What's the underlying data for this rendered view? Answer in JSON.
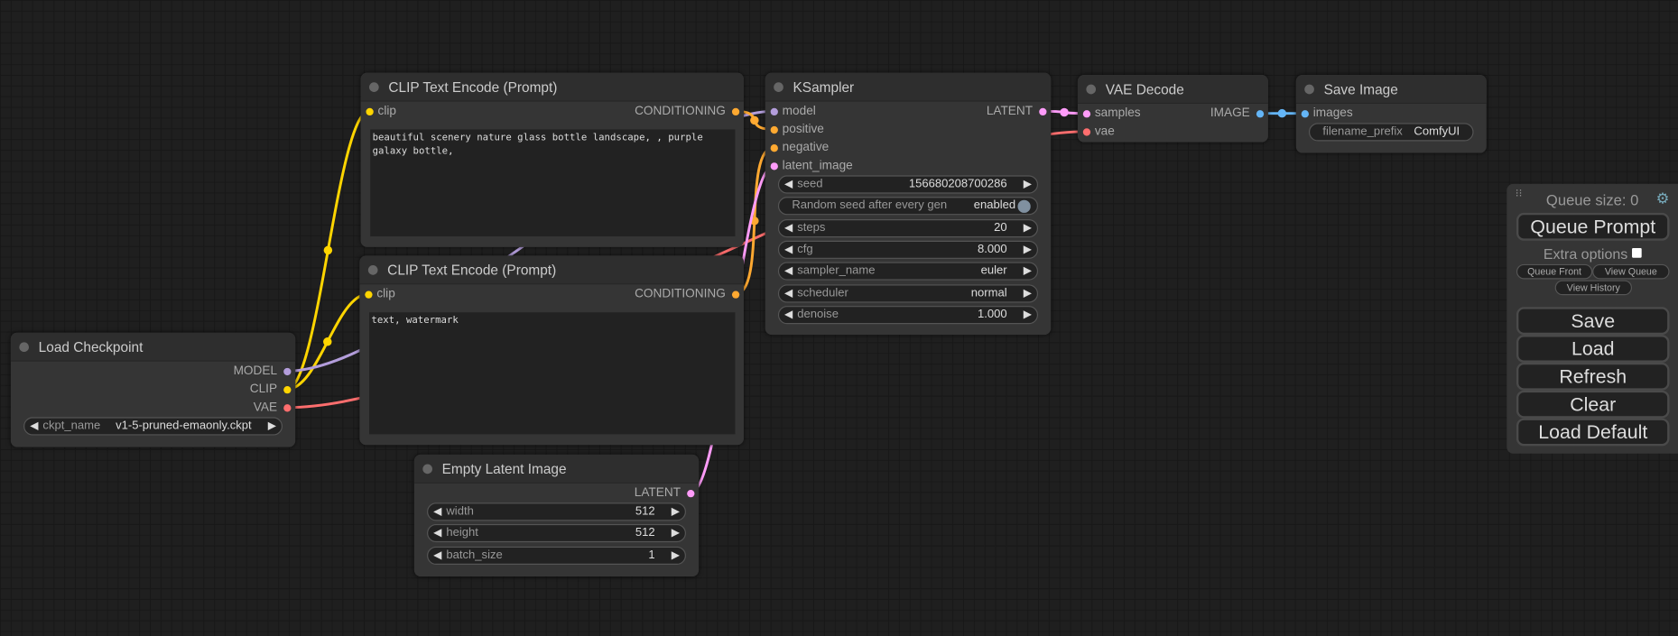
{
  "colors": {
    "CLIP": "#ffd500",
    "MODEL": "#b39ddb",
    "VAE": "#ff6e6e",
    "CONDITIONING": "#ffa931",
    "LATENT": "#ff9cf9",
    "IMAGE": "#64b5f6"
  },
  "nodes": [
    {
      "id": "clip1",
      "title": "CLIP Text Encode (Prompt)",
      "inputs": [
        {
          "name": "clip",
          "type": "CLIP"
        }
      ],
      "outputs": [
        {
          "name": "CONDITIONING",
          "type": "CONDITIONING"
        }
      ],
      "widgets": [],
      "text": "beautiful scenery nature glass bottle landscape, , purple galaxy bottle,"
    },
    {
      "id": "clip2",
      "title": "CLIP Text Encode (Prompt)",
      "inputs": [
        {
          "name": "clip",
          "type": "CLIP"
        }
      ],
      "outputs": [
        {
          "name": "CONDITIONING",
          "type": "CONDITIONING"
        }
      ],
      "widgets": [],
      "text": "text, watermark"
    },
    {
      "id": "ckpt",
      "title": "Load Checkpoint",
      "inputs": [],
      "outputs": [
        {
          "name": "MODEL",
          "type": "MODEL"
        },
        {
          "name": "CLIP",
          "type": "CLIP"
        },
        {
          "name": "VAE",
          "type": "VAE"
        }
      ],
      "widgets": [
        {
          "name": "ckpt_name",
          "value": "v1-5-pruned-emaonly.ckpt",
          "kind": "combo"
        }
      ]
    },
    {
      "id": "latent",
      "title": "Empty Latent Image",
      "inputs": [],
      "outputs": [
        {
          "name": "LATENT",
          "type": "LATENT"
        }
      ],
      "widgets": [
        {
          "name": "width",
          "value": "512",
          "kind": "number"
        },
        {
          "name": "height",
          "value": "512",
          "kind": "number"
        },
        {
          "name": "batch_size",
          "value": "1",
          "kind": "number"
        }
      ]
    },
    {
      "id": "ksampler",
      "title": "KSampler",
      "inputs": [
        {
          "name": "model",
          "type": "MODEL"
        },
        {
          "name": "positive",
          "type": "CONDITIONING"
        },
        {
          "name": "negative",
          "type": "CONDITIONING"
        },
        {
          "name": "latent_image",
          "type": "LATENT"
        }
      ],
      "outputs": [
        {
          "name": "LATENT",
          "type": "LATENT"
        }
      ],
      "widgets": [
        {
          "name": "seed",
          "value": "156680208700286",
          "kind": "number"
        },
        {
          "name": "Random seed after every gen",
          "value": "enabled",
          "kind": "toggle"
        },
        {
          "name": "steps",
          "value": "20",
          "kind": "number"
        },
        {
          "name": "cfg",
          "value": "8.000",
          "kind": "number"
        },
        {
          "name": "sampler_name",
          "value": "euler",
          "kind": "combo"
        },
        {
          "name": "scheduler",
          "value": "normal",
          "kind": "combo"
        },
        {
          "name": "denoise",
          "value": "1.000",
          "kind": "number"
        }
      ]
    },
    {
      "id": "vaedecode",
      "title": "VAE Decode",
      "inputs": [
        {
          "name": "samples",
          "type": "LATENT"
        },
        {
          "name": "vae",
          "type": "VAE"
        }
      ],
      "outputs": [
        {
          "name": "IMAGE",
          "type": "IMAGE"
        }
      ],
      "widgets": []
    },
    {
      "id": "save",
      "title": "Save Image",
      "inputs": [
        {
          "name": "images",
          "type": "IMAGE"
        }
      ],
      "outputs": [],
      "widgets": [
        {
          "name": "filename_prefix",
          "value": "ComfyUI",
          "kind": "text"
        }
      ]
    }
  ],
  "panel": {
    "queue_size": "Queue size: 0",
    "queue_prompt": "Queue Prompt",
    "extra_options": "Extra options",
    "queue_front": "Queue Front",
    "view_queue": "View Queue",
    "view_history": "View History",
    "save": "Save",
    "load": "Load",
    "refresh": "Refresh",
    "clear": "Clear",
    "load_default": "Load Default",
    "settings_icon": "gear-icon",
    "drag_icon": "drag-handle-icon"
  }
}
